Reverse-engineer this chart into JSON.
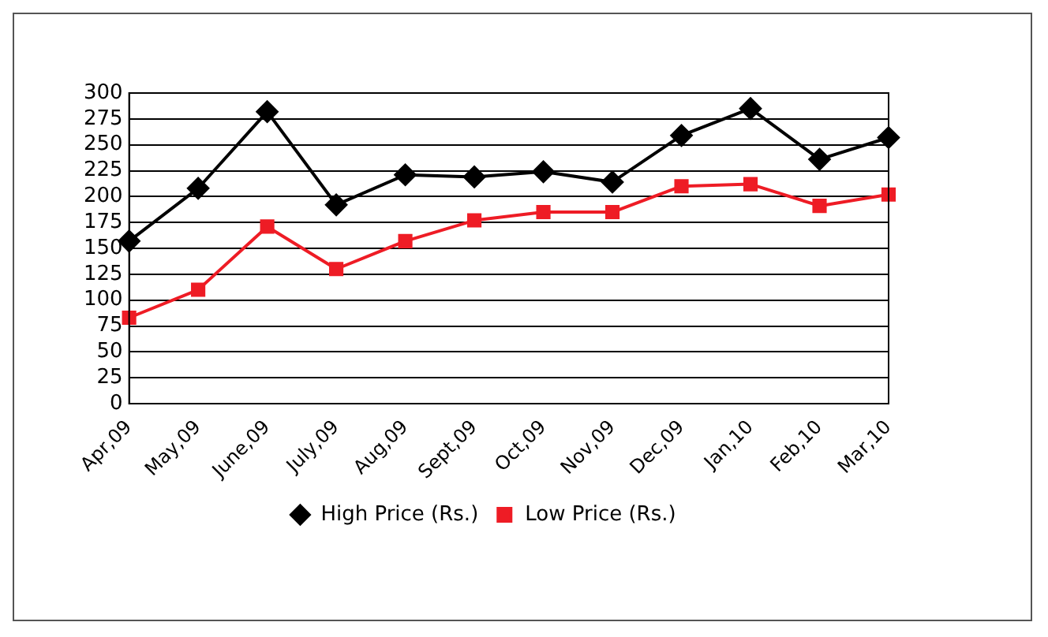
{
  "chart_data": {
    "type": "line",
    "categories": [
      "Apr,09",
      "May,09",
      "June,09",
      "July,09",
      "Aug,09",
      "Sept,09",
      "Oct,09",
      "Nov,09",
      "Dec,09",
      "Jan,10",
      "Feb,10",
      "Mar,10"
    ],
    "series": [
      {
        "name": "High Price (Rs.)",
        "color": "#000000",
        "marker": "diamond",
        "values": [
          157,
          208,
          282,
          192,
          221,
          219,
          224,
          214,
          259,
          285,
          236,
          257
        ]
      },
      {
        "name": "Low Price (Rs.)",
        "color": "#ee1c25",
        "marker": "square",
        "values": [
          83,
          110,
          171,
          130,
          157,
          177,
          185,
          185,
          210,
          212,
          191,
          202
        ]
      }
    ],
    "ylim": [
      0,
      300
    ],
    "yticks": [
      0,
      25,
      50,
      75,
      100,
      125,
      150,
      175,
      200,
      225,
      250,
      275,
      300
    ],
    "grid": "y",
    "legend": "bottom",
    "line_style": "solid"
  }
}
